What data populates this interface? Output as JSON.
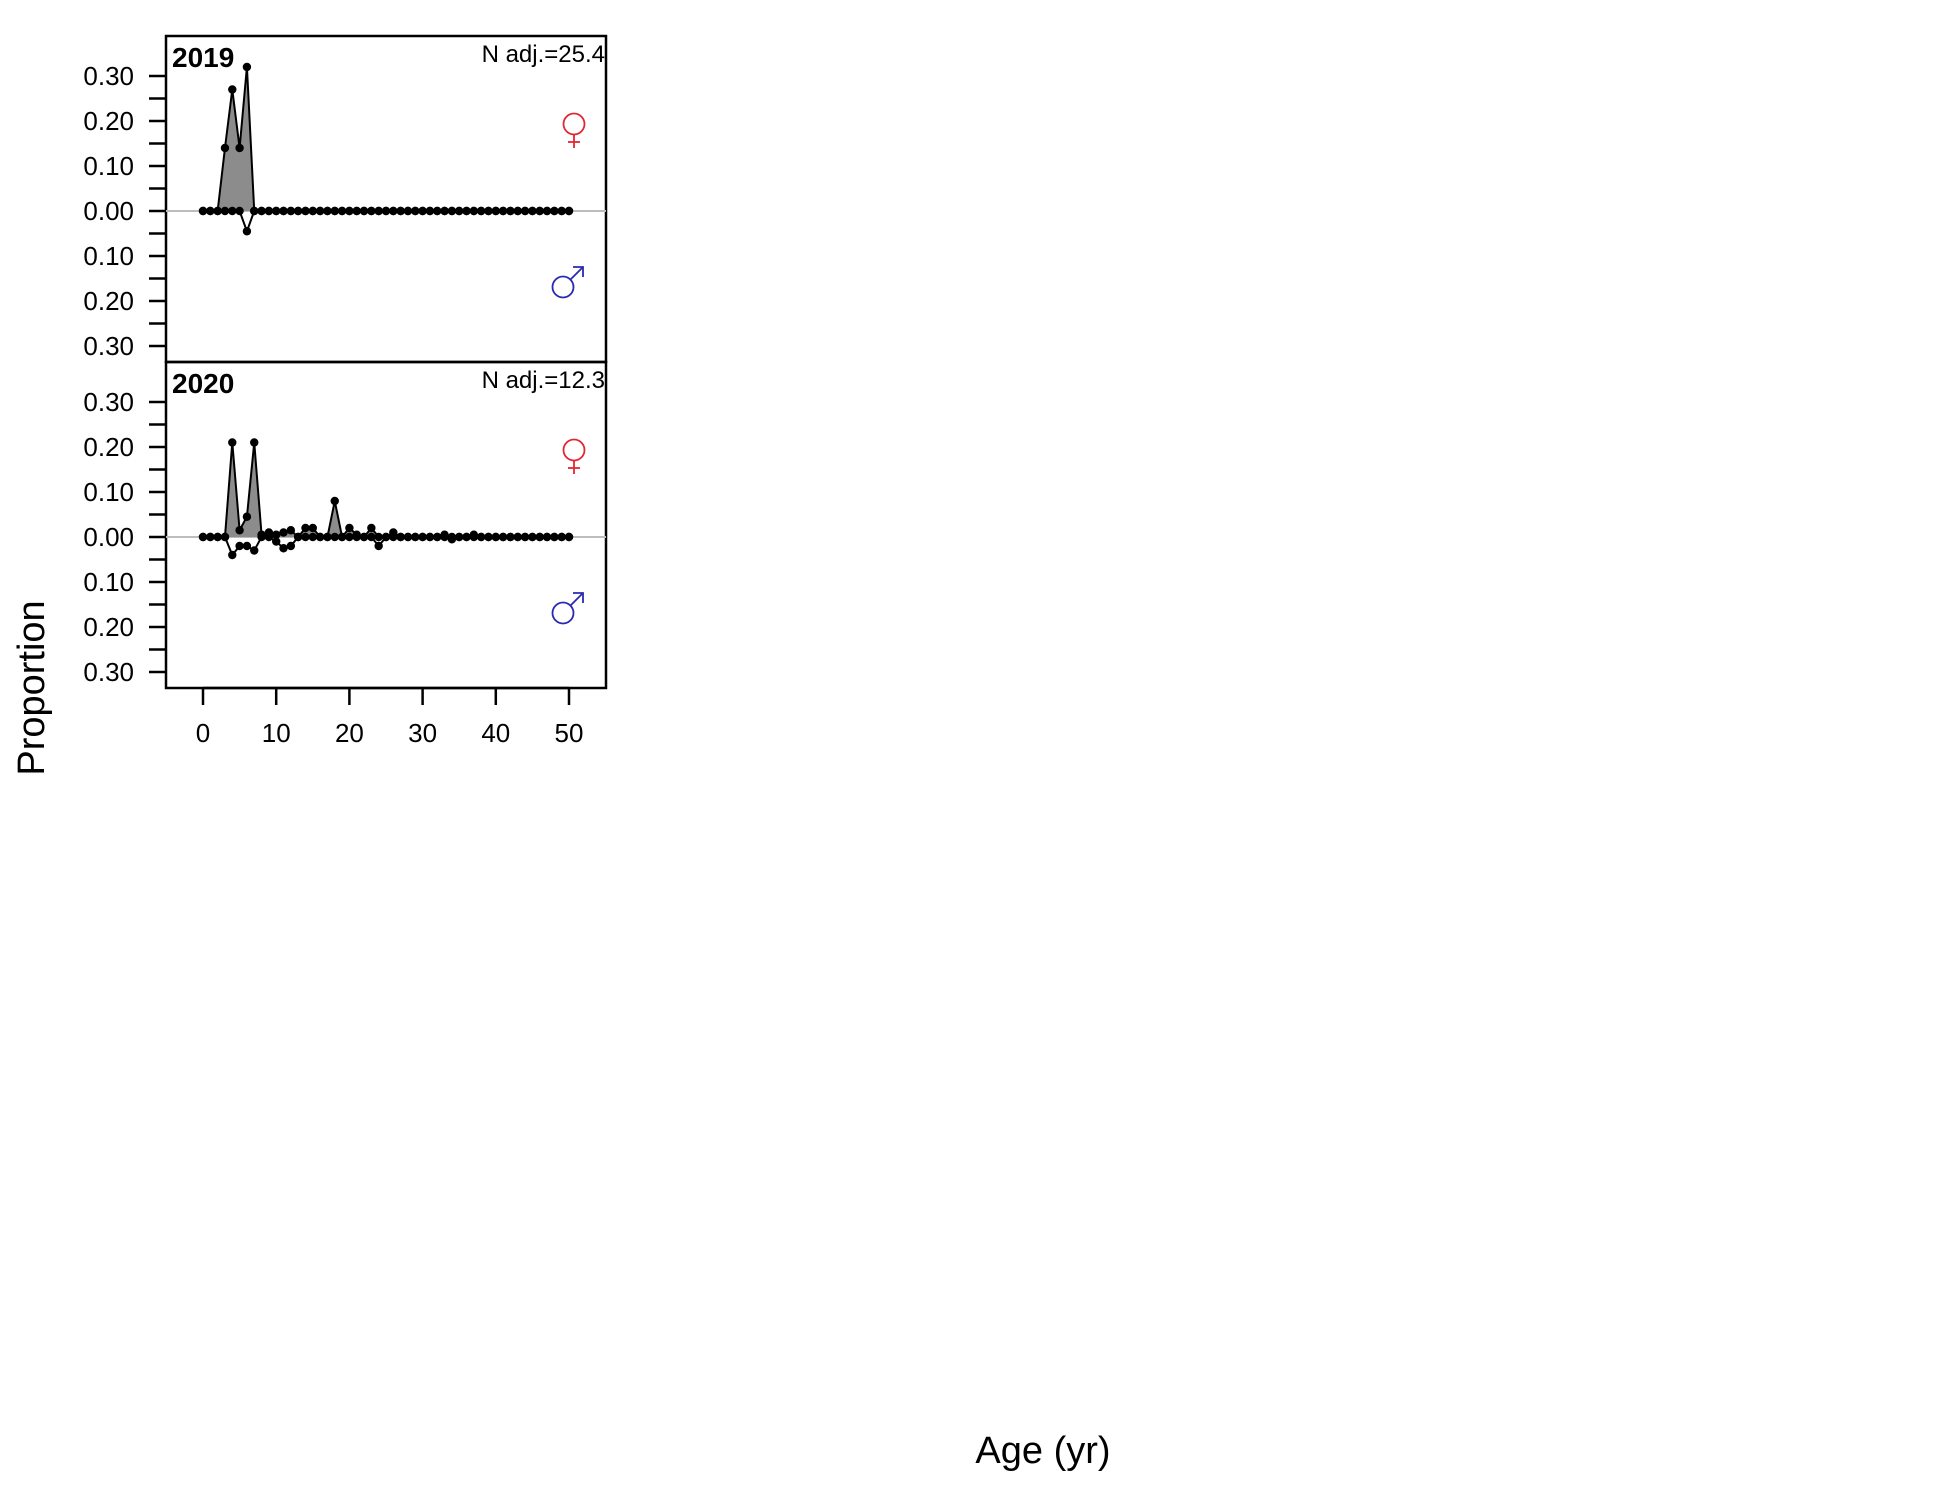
{
  "chart_data": {
    "type": "area",
    "xlabel": "Age (yr)",
    "ylabel": "Proportion",
    "xlim": [
      0,
      50
    ],
    "xticks": [
      "0",
      "10",
      "20",
      "30",
      "40",
      "50"
    ],
    "yticks": [
      "0.30",
      "0.20",
      "0.10",
      "0.00",
      "0.10",
      "0.20",
      "0.30"
    ],
    "female_symbol": "♀",
    "male_symbol": "♂",
    "female_color": "#e32636",
    "male_color": "#2a2ab0",
    "fill_color": "#8c8c8c",
    "panels": [
      {
        "year": "2019",
        "n_adj": "N adj.=25.4",
        "ages": [
          0,
          1,
          2,
          3,
          4,
          5,
          6,
          7,
          8,
          9,
          10,
          11,
          12,
          13,
          14,
          15,
          16,
          17,
          18,
          19,
          20,
          21,
          22,
          23,
          24,
          25,
          26,
          27,
          28,
          29,
          30,
          31,
          32,
          33,
          34,
          35,
          36,
          37,
          38,
          39,
          40,
          41,
          42,
          43,
          44,
          45,
          46,
          47,
          48,
          49,
          50
        ],
        "female": [
          0,
          0,
          0,
          0.14,
          0.27,
          0.14,
          0.32,
          0,
          0,
          0,
          0,
          0,
          0,
          0,
          0,
          0,
          0,
          0,
          0,
          0,
          0,
          0,
          0,
          0,
          0,
          0,
          0,
          0,
          0,
          0,
          0,
          0,
          0,
          0,
          0,
          0,
          0,
          0,
          0,
          0,
          0,
          0,
          0,
          0,
          0,
          0,
          0,
          0,
          0,
          0,
          0
        ],
        "male": [
          0,
          0,
          0,
          0,
          0,
          0,
          0.045,
          0,
          0,
          0,
          0,
          0,
          0,
          0,
          0,
          0,
          0,
          0,
          0,
          0,
          0,
          0,
          0,
          0,
          0,
          0,
          0,
          0,
          0,
          0,
          0,
          0,
          0,
          0,
          0,
          0,
          0,
          0,
          0,
          0,
          0,
          0,
          0,
          0,
          0,
          0,
          0,
          0,
          0,
          0,
          0
        ]
      },
      {
        "year": "2020",
        "n_adj": "N adj.=12.3",
        "ages": [
          0,
          1,
          2,
          3,
          4,
          5,
          6,
          7,
          8,
          9,
          10,
          11,
          12,
          13,
          14,
          15,
          16,
          17,
          18,
          19,
          20,
          21,
          22,
          23,
          24,
          25,
          26,
          27,
          28,
          29,
          30,
          31,
          32,
          33,
          34,
          35,
          36,
          37,
          38,
          39,
          40,
          41,
          42,
          43,
          44,
          45,
          46,
          47,
          48,
          49,
          50
        ],
        "female": [
          0,
          0,
          0,
          0,
          0.21,
          0.015,
          0.045,
          0.21,
          0.005,
          0.01,
          0.005,
          0.01,
          0.015,
          0,
          0.02,
          0.02,
          0,
          0,
          0.08,
          0,
          0.02,
          0.005,
          0,
          0.02,
          0,
          0,
          0.01,
          0,
          0,
          0,
          0,
          0,
          0,
          0.005,
          0,
          0,
          0,
          0.005,
          0,
          0,
          0,
          0,
          0,
          0,
          0,
          0,
          0,
          0,
          0,
          0,
          0
        ],
        "male": [
          0,
          0,
          0,
          0,
          0.04,
          0.02,
          0.02,
          0.03,
          0,
          0,
          0.01,
          0.025,
          0.02,
          0,
          0,
          0,
          0,
          0,
          0,
          0,
          0,
          0,
          0,
          0,
          0.02,
          0,
          0,
          0,
          0,
          0,
          0,
          0,
          0,
          0,
          0.005,
          0,
          0,
          0,
          0,
          0,
          0,
          0,
          0,
          0,
          0,
          0,
          0,
          0,
          0,
          0,
          0
        ]
      }
    ]
  }
}
